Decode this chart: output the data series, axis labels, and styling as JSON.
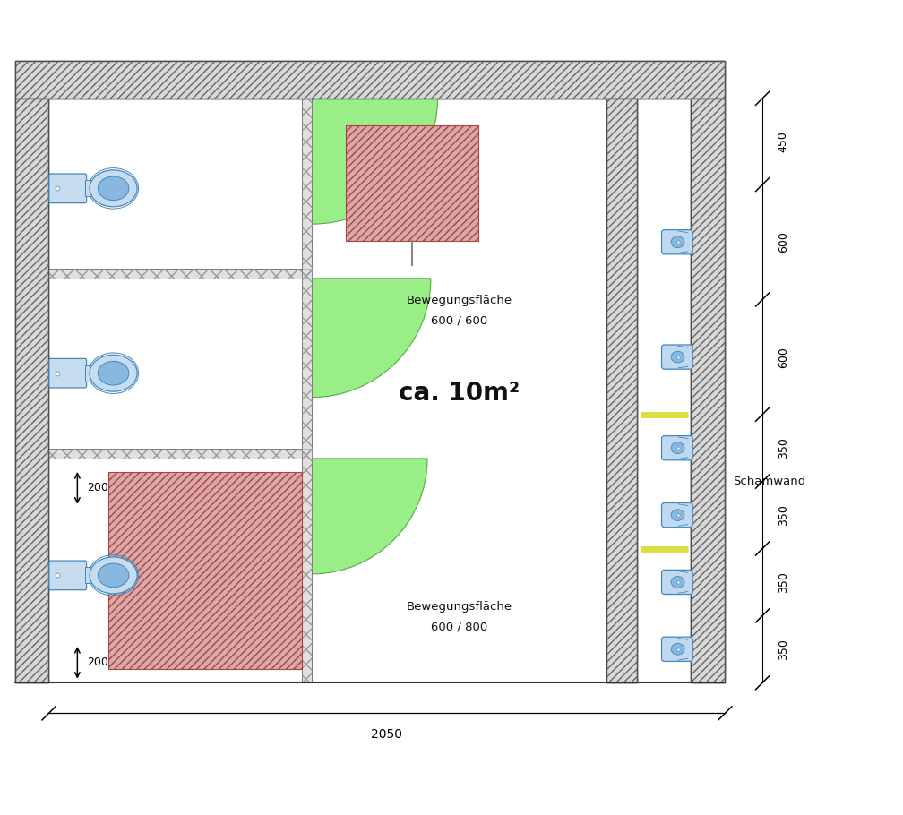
{
  "bg_color": "#ffffff",
  "wall_bg": "#d8d8d8",
  "wall_edge": "#333333",
  "thin_wall_bg": "#e0e0e0",
  "thin_wall_edge": "#555555",
  "toilet_light": "#c8dcf0",
  "toilet_mid": "#88b8e0",
  "toilet_dark": "#4488bb",
  "urinal_light": "#c0d8f0",
  "urinal_mid": "#88b8e0",
  "urinal_dark": "#4488bb",
  "green_fill": "#99ee88",
  "green_edge": "#55aa44",
  "red_fill": "#daa8a8",
  "red_edge": "#aa4444",
  "schamwand_color": "#dddd44",
  "text_color": "#111111",
  "dim_color": "#000000",
  "title_text": "ca. 10m²",
  "label1_line1": "Bewegungsfläche",
  "label1_line2": "600 / 600",
  "label2_line1": "Bewegungsfläche",
  "label2_line2": "600 / 800",
  "schamwand_label": "Schamwand",
  "dim_bottom": "2050",
  "right_dim_labels": [
    "450",
    "600",
    "600",
    "350",
    "350",
    "350",
    "350"
  ],
  "right_dim_vals": [
    450,
    600,
    600,
    350,
    350,
    350,
    350
  ],
  "figure_width": 10.08,
  "figure_height": 9.1,
  "dpi": 100
}
